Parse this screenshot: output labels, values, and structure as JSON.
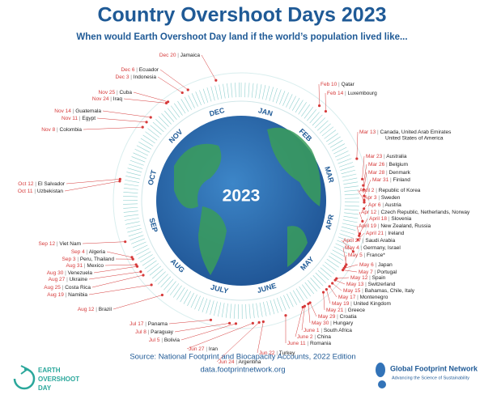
{
  "header": {
    "title": "Country Overshoot Days 2023",
    "subtitle": "When would Earth Overshoot Day land if the world’s population lived like..."
  },
  "center_year": "2023",
  "months": [
    "JAN",
    "FEB",
    "MAR",
    "APR",
    "MAY",
    "JUNE",
    "JULY",
    "AUG",
    "SEP",
    "OCT",
    "NOV",
    "DEC"
  ],
  "entries": [
    {
      "date": "Feb 10",
      "countries": [
        "Qatar"
      ]
    },
    {
      "date": "Feb 14",
      "countries": [
        "Luxembourg"
      ]
    },
    {
      "date": "Mar 13",
      "countries": [
        "Canada, United Arab Emirates",
        "United States of America"
      ]
    },
    {
      "date": "Mar 23",
      "countries": [
        "Australia"
      ]
    },
    {
      "date": "Mar 26",
      "countries": [
        "Belgium"
      ]
    },
    {
      "date": "Mar 28",
      "countries": [
        "Denmark"
      ]
    },
    {
      "date": "Mar 31",
      "countries": [
        "Finland"
      ]
    },
    {
      "date": "April 2",
      "countries": [
        "Republic of Korea"
      ]
    },
    {
      "date": "Apr 3",
      "countries": [
        "Sweden"
      ]
    },
    {
      "date": "Apr 6",
      "countries": [
        "Austria"
      ]
    },
    {
      "date": "Apr 12",
      "countries": [
        "Czech Republic, Netherlands, Norway"
      ]
    },
    {
      "date": "April 18",
      "countries": [
        "Slovenia"
      ]
    },
    {
      "date": "April 19",
      "countries": [
        "New Zealand, Russia"
      ]
    },
    {
      "date": "April 21",
      "countries": [
        "Ireland"
      ]
    },
    {
      "date": "April 27",
      "countries": [
        "Saudi Arabia"
      ]
    },
    {
      "date": "May 4",
      "countries": [
        "Germany, Israel"
      ]
    },
    {
      "date": "May 5",
      "countries": [
        "France*"
      ]
    },
    {
      "date": "May 6",
      "countries": [
        "Japan"
      ]
    },
    {
      "date": "May 7",
      "countries": [
        "Portugal"
      ]
    },
    {
      "date": "May 12",
      "countries": [
        "Spain"
      ]
    },
    {
      "date": "May 13",
      "countries": [
        "Switzerland"
      ]
    },
    {
      "date": "May 15",
      "countries": [
        "Bahamas, Chile, Italy"
      ]
    },
    {
      "date": "May 17",
      "countries": [
        "Montenegro"
      ]
    },
    {
      "date": "May 19",
      "countries": [
        "United Kingdom"
      ]
    },
    {
      "date": "May 21",
      "countries": [
        "Greece"
      ]
    },
    {
      "date": "May 29",
      "countries": [
        "Croatia"
      ]
    },
    {
      "date": "May 30",
      "countries": [
        "Hungary"
      ]
    },
    {
      "date": "June 1",
      "countries": [
        "South Africa"
      ]
    },
    {
      "date": "June 2",
      "countries": [
        "China"
      ]
    },
    {
      "date": "June 11",
      "countries": [
        "Romania"
      ]
    },
    {
      "date": "Jun 22",
      "countries": [
        "Turkey"
      ]
    },
    {
      "date": "Jun 24",
      "countries": [
        "Argentina"
      ]
    },
    {
      "date": "Jun 27",
      "countries": [
        "Iran"
      ]
    },
    {
      "date": "Jul 5",
      "countries": [
        "Bolivia"
      ]
    },
    {
      "date": "Jul 8",
      "countries": [
        "Paraguay"
      ]
    },
    {
      "date": "Jul 17",
      "countries": [
        "Panama"
      ]
    },
    {
      "date": "Aug 12",
      "countries": [
        "Brazil"
      ]
    },
    {
      "date": "Aug 19",
      "countries": [
        "Namibia"
      ]
    },
    {
      "date": "Aug 25",
      "countries": [
        "Costa Rica"
      ]
    },
    {
      "date": "Aug 27",
      "countries": [
        "Ukraine"
      ]
    },
    {
      "date": "Aug 30",
      "countries": [
        "Venezuela"
      ]
    },
    {
      "date": "Aug 31",
      "countries": [
        "Mexico"
      ]
    },
    {
      "date": "Sep 3",
      "countries": [
        "Peru, Thailand"
      ]
    },
    {
      "date": "Sep 4",
      "countries": [
        "Algeria"
      ]
    },
    {
      "date": "Sep 12",
      "countries": [
        "Viet Nam"
      ]
    },
    {
      "date": "Oct 11",
      "countries": [
        "Uzbekistan"
      ]
    },
    {
      "date": "Oct 12",
      "countries": [
        "El Salvador"
      ]
    },
    {
      "date": "Nov 8",
      "countries": [
        "Colombia"
      ]
    },
    {
      "date": "Nov 11",
      "countries": [
        "Egypt"
      ]
    },
    {
      "date": "Nov 14",
      "countries": [
        "Guatemala"
      ]
    },
    {
      "date": "Nov 24",
      "countries": [
        "Iraq"
      ]
    },
    {
      "date": "Nov 25",
      "countries": [
        "Cuba"
      ]
    },
    {
      "date": "Dec 3",
      "countries": [
        "Indonesia"
      ]
    },
    {
      "date": "Dec 6",
      "countries": [
        "Ecuador"
      ]
    },
    {
      "date": "Dec 20",
      "countries": [
        "Jamaica"
      ]
    }
  ],
  "footer": {
    "left_logo": [
      "EARTH",
      "OVERSHOOT",
      "DAY"
    ],
    "source": "Source: National Footprint and Biocapacity Accounts, 2022 Edition",
    "url": "data.footprintnetwork.org",
    "right_logo": "Global Footprint Network",
    "tagline": "Advancing the Science of Sustainability"
  }
}
